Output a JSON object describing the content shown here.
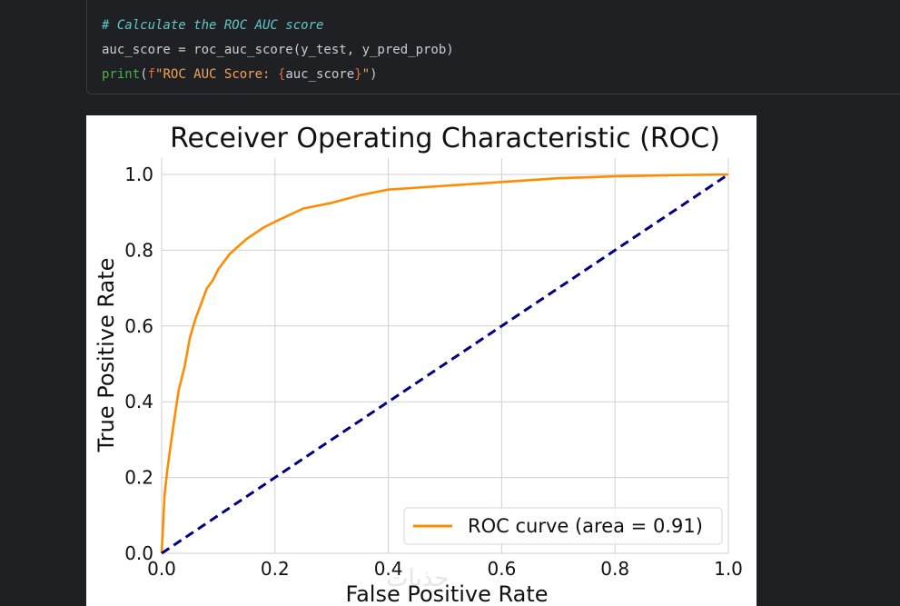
{
  "code": {
    "comment": "# Calculate the ROC AUC score",
    "line2": "auc_score = roc_auc_score(y_test, y_pred_prob)",
    "print_kw": "print",
    "paren_open": "(",
    "fstr_prefix": "f",
    "fstr_text": "\"ROC AUC Score: ",
    "brace_open": "{",
    "fstr_var": "auc_score",
    "brace_close": "}",
    "fstr_end": "\"",
    "paren_close": ")"
  },
  "watermark": "جذبات",
  "chart_data": {
    "type": "line",
    "title": "Receiver Operating Characteristic (ROC)",
    "xlabel": "False Positive Rate",
    "ylabel": "True Positive Rate",
    "xlim": [
      0.0,
      1.0
    ],
    "ylim": [
      0.0,
      1.0
    ],
    "xticks": [
      "0.0",
      "0.2",
      "0.4",
      "0.6",
      "0.8",
      "1.0"
    ],
    "yticks": [
      "0.0",
      "0.2",
      "0.4",
      "0.6",
      "0.8",
      "1.0"
    ],
    "grid": true,
    "legend_position": "lower-right",
    "series": [
      {
        "name": "ROC curve (area = 0.91)",
        "color": "#ff8c00",
        "style": "solid",
        "x": [
          0.0,
          0.005,
          0.01,
          0.02,
          0.03,
          0.04,
          0.05,
          0.06,
          0.07,
          0.08,
          0.09,
          0.1,
          0.12,
          0.15,
          0.18,
          0.2,
          0.25,
          0.3,
          0.35,
          0.4,
          0.5,
          0.6,
          0.7,
          0.8,
          0.9,
          1.0
        ],
        "y": [
          0.0,
          0.15,
          0.22,
          0.33,
          0.43,
          0.49,
          0.57,
          0.62,
          0.66,
          0.7,
          0.72,
          0.75,
          0.79,
          0.83,
          0.86,
          0.875,
          0.91,
          0.925,
          0.945,
          0.96,
          0.97,
          0.98,
          0.99,
          0.995,
          0.998,
          1.0
        ]
      },
      {
        "color": "#000080",
        "style": "dashed",
        "x": [
          0.0,
          1.0
        ],
        "y": [
          0.0,
          1.0
        ]
      }
    ]
  }
}
